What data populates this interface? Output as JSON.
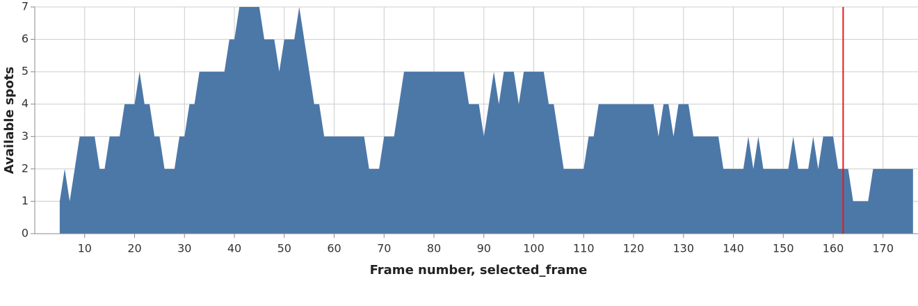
{
  "chart_data": {
    "type": "area",
    "x_label": "Frame number, selected_frame",
    "y_label": "Available spots",
    "x": [
      5,
      6,
      7,
      8,
      9,
      10,
      11,
      12,
      13,
      14,
      15,
      16,
      17,
      18,
      19,
      20,
      21,
      22,
      23,
      24,
      25,
      26,
      27,
      28,
      29,
      30,
      31,
      32,
      33,
      34,
      35,
      36,
      37,
      38,
      39,
      40,
      41,
      42,
      43,
      44,
      45,
      46,
      47,
      48,
      49,
      50,
      51,
      52,
      53,
      54,
      55,
      56,
      57,
      58,
      59,
      60,
      61,
      62,
      63,
      64,
      65,
      66,
      67,
      68,
      69,
      70,
      71,
      72,
      73,
      74,
      75,
      76,
      77,
      78,
      79,
      80,
      81,
      82,
      83,
      84,
      85,
      86,
      87,
      88,
      89,
      90,
      91,
      92,
      93,
      94,
      95,
      96,
      97,
      98,
      99,
      100,
      101,
      102,
      103,
      104,
      105,
      106,
      107,
      108,
      109,
      110,
      111,
      112,
      113,
      114,
      115,
      116,
      117,
      118,
      119,
      120,
      121,
      122,
      123,
      124,
      125,
      126,
      127,
      128,
      129,
      130,
      131,
      132,
      133,
      134,
      135,
      136,
      137,
      138,
      139,
      140,
      141,
      142,
      143,
      144,
      145,
      146,
      147,
      148,
      149,
      150,
      151,
      152,
      153,
      154,
      155,
      156,
      157,
      158,
      159,
      160,
      161,
      162,
      163,
      164,
      165,
      166,
      167,
      168,
      169,
      170,
      171,
      172,
      173,
      174,
      175,
      176
    ],
    "values": [
      1,
      2,
      1,
      2,
      3,
      3,
      3,
      3,
      2,
      2,
      3,
      3,
      3,
      4,
      4,
      4,
      5,
      4,
      4,
      3,
      3,
      2,
      2,
      2,
      3,
      3,
      4,
      4,
      5,
      5,
      5,
      5,
      5,
      5,
      6,
      6,
      7,
      7,
      7,
      7,
      7,
      6,
      6,
      6,
      5,
      6,
      6,
      6,
      7,
      6,
      5,
      4,
      4,
      3,
      3,
      3,
      3,
      3,
      3,
      3,
      3,
      3,
      2,
      2,
      2,
      3,
      3,
      3,
      4,
      5,
      5,
      5,
      5,
      5,
      5,
      5,
      5,
      5,
      5,
      5,
      5,
      5,
      4,
      4,
      4,
      3,
      4,
      5,
      4,
      5,
      5,
      5,
      4,
      5,
      5,
      5,
      5,
      5,
      4,
      4,
      3,
      2,
      2,
      2,
      2,
      2,
      3,
      3,
      4,
      4,
      4,
      4,
      4,
      4,
      4,
      4,
      4,
      4,
      4,
      4,
      3,
      4,
      4,
      3,
      4,
      4,
      4,
      3,
      3,
      3,
      3,
      3,
      3,
      2,
      2,
      2,
      2,
      2,
      3,
      2,
      3,
      2,
      2,
      2,
      2,
      2,
      2,
      3,
      2,
      2,
      2,
      3,
      2,
      3,
      3,
      3,
      2,
      2,
      2,
      1,
      1,
      1,
      1,
      2,
      2,
      2,
      2,
      2,
      2,
      2,
      2,
      2
    ],
    "color": "#4c78a8",
    "rule_x": 162,
    "rule_color": "#e41a1c",
    "xlim": [
      0,
      177
    ],
    "xticks": [
      10,
      20,
      30,
      40,
      50,
      60,
      70,
      80,
      90,
      100,
      110,
      120,
      130,
      140,
      150,
      160,
      170
    ],
    "ylim": [
      0,
      7
    ],
    "yticks": [
      0,
      1,
      2,
      3,
      4,
      5,
      6,
      7
    ],
    "grid": true
  }
}
